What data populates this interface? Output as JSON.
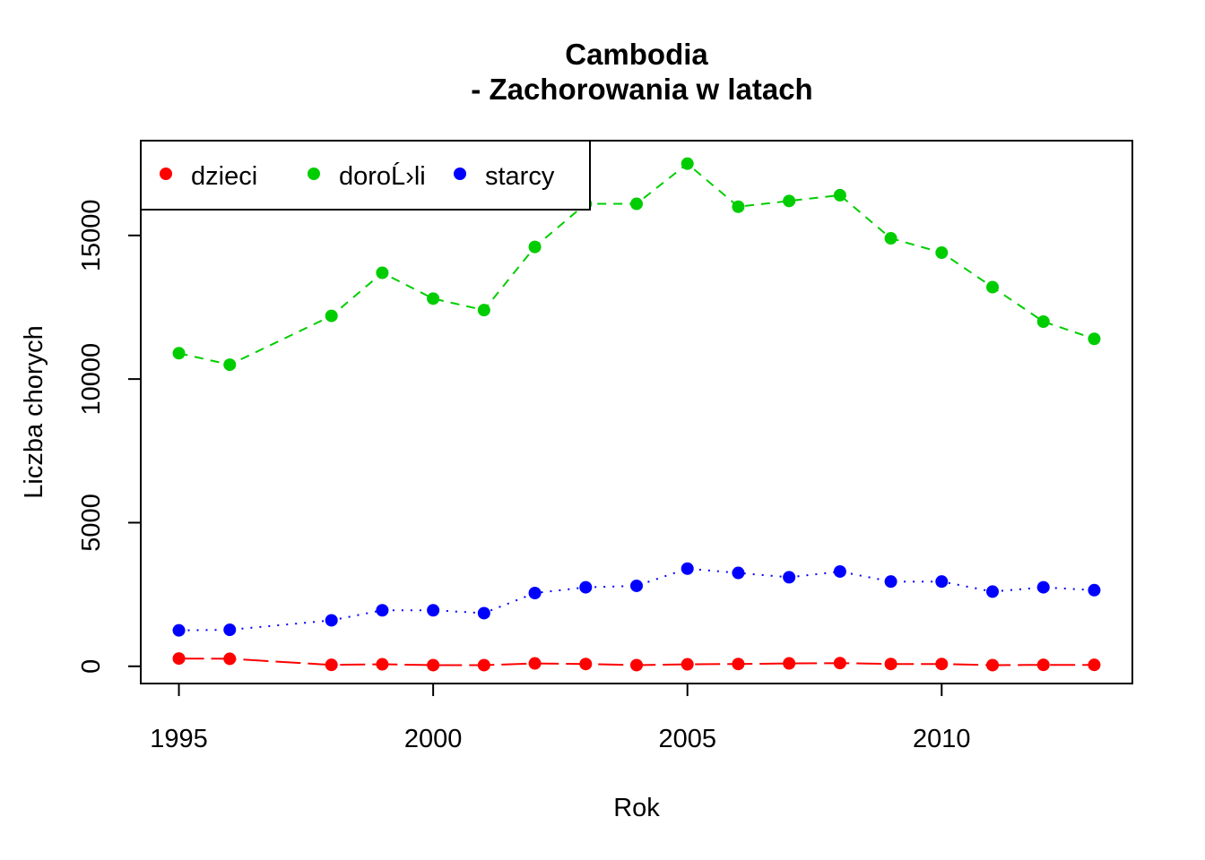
{
  "chart_data": {
    "type": "line",
    "title": "Cambodia",
    "subtitle": "- Zachorowania w latach",
    "xlabel": "Rok",
    "ylabel": "Liczba chorych",
    "xlim": [
      1994.25,
      2013.75
    ],
    "ylim": [
      -600,
      18300
    ],
    "x_ticks": [
      1995,
      2000,
      2005,
      2010
    ],
    "y_ticks": [
      0,
      5000,
      10000,
      15000
    ],
    "x_tick_labels": [
      "1995",
      "2000",
      "2005",
      "2010"
    ],
    "y_tick_labels": [
      "0",
      "5000",
      "10000",
      "15000"
    ],
    "grid": false,
    "legend_position": "top-left",
    "series": [
      {
        "name": "dzieci",
        "color": "#ff0000",
        "line_style": "long-dash",
        "x": [
          1995,
          1996,
          1998,
          1999,
          2000,
          2001,
          2002,
          2003,
          2004,
          2005,
          2006,
          2007,
          2008,
          2009,
          2010,
          2011,
          2012,
          2013
        ],
        "values": [
          270,
          260,
          50,
          70,
          40,
          40,
          100,
          80,
          40,
          70,
          80,
          100,
          110,
          80,
          80,
          40,
          50,
          50
        ]
      },
      {
        "name": "doroĹ›li",
        "color": "#00cd00",
        "line_style": "dashed",
        "x": [
          1995,
          1996,
          1998,
          1999,
          2000,
          2001,
          2002,
          2003,
          2004,
          2005,
          2006,
          2007,
          2008,
          2009,
          2010,
          2011,
          2012,
          2013
        ],
        "values": [
          10900,
          10500,
          12200,
          13700,
          12800,
          12400,
          14600,
          16100,
          16100,
          17500,
          16000,
          16200,
          16400,
          14900,
          14400,
          13200,
          12000,
          11400
        ]
      },
      {
        "name": "starcy",
        "color": "#0000ff",
        "line_style": "dotted",
        "x": [
          1995,
          1996,
          1998,
          1999,
          2000,
          2001,
          2002,
          2003,
          2004,
          2005,
          2006,
          2007,
          2008,
          2009,
          2010,
          2011,
          2012,
          2013
        ],
        "values": [
          1250,
          1270,
          1600,
          1950,
          1950,
          1850,
          2550,
          2750,
          2800,
          3400,
          3250,
          3100,
          3300,
          2950,
          2950,
          2600,
          2750,
          2650
        ]
      }
    ]
  }
}
